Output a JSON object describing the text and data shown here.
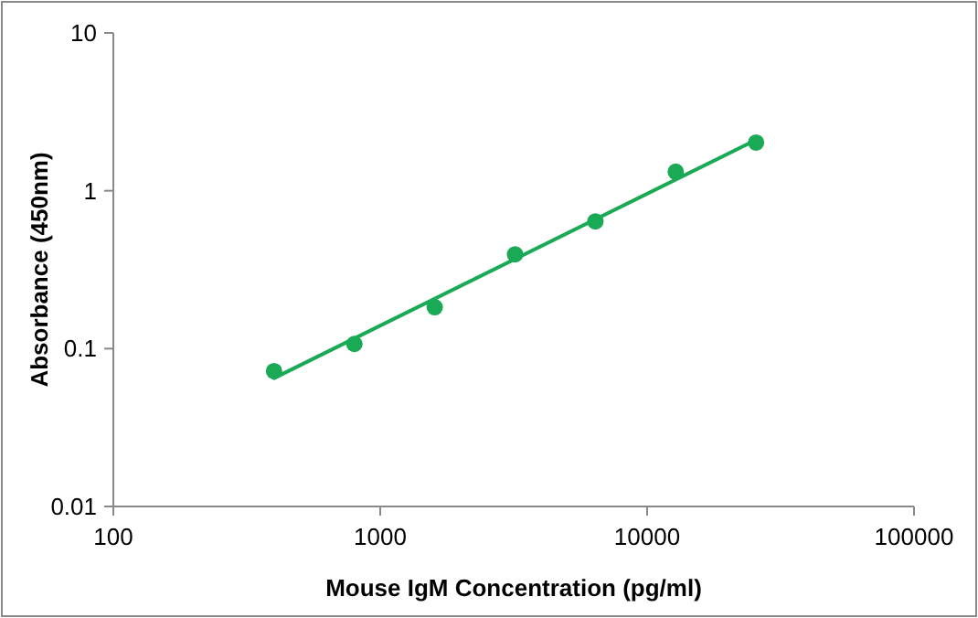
{
  "chart_data": {
    "type": "scatter",
    "xlabel": "Mouse IgM Concentration (pg/ml)",
    "ylabel": "Absorbance (450nm)",
    "log": "xy",
    "xlim": [
      100,
      100000
    ],
    "xticks": [
      100,
      1000,
      10000,
      100000
    ],
    "ylim": [
      0.01,
      10
    ],
    "yticks": [
      0.01,
      0.1,
      1,
      10
    ],
    "grid": false,
    "marker": "circle",
    "series": [
      {
        "color": "#1aaa55",
        "x": [
          400,
          800,
          1600,
          3200,
          6400,
          12800,
          25600
        ],
        "values": [
          0.072,
          0.107,
          0.183,
          0.396,
          0.64,
          1.32,
          2.02
        ]
      },
      {
        "type": "line",
        "color": "#1aaa55",
        "line_style": "solid",
        "marker": "none",
        "x": [
          400,
          25600
        ],
        "values": [
          0.065,
          2.1
        ]
      }
    ]
  }
}
